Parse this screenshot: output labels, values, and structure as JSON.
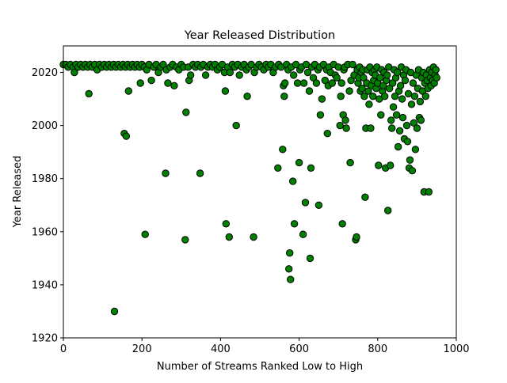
{
  "chart_data": {
    "type": "scatter",
    "title": "Year Released Distribution",
    "xlabel": "Number of Streams Ranked Low to High",
    "ylabel": "Year Released",
    "xlim": [
      0,
      1000
    ],
    "ylim": [
      1920,
      2030
    ],
    "xticks": [
      "0",
      "200",
      "400",
      "600",
      "800",
      "1000"
    ],
    "yticks": [
      "1920",
      "1940",
      "1960",
      "1980",
      "2000",
      "2020"
    ],
    "grid": false,
    "marker_color": "#008000",
    "marker_edge_color": "#000000",
    "points": [
      [
        0,
        2023
      ],
      [
        6,
        2023
      ],
      [
        12,
        2022
      ],
      [
        18,
        2023
      ],
      [
        25,
        2022
      ],
      [
        28,
        2020
      ],
      [
        32,
        2023
      ],
      [
        38,
        2022
      ],
      [
        44,
        2023
      ],
      [
        50,
        2022
      ],
      [
        56,
        2023
      ],
      [
        62,
        2022
      ],
      [
        65,
        2012
      ],
      [
        68,
        2023
      ],
      [
        74,
        2022
      ],
      [
        80,
        2023
      ],
      [
        86,
        2021
      ],
      [
        92,
        2023
      ],
      [
        98,
        2022
      ],
      [
        104,
        2023
      ],
      [
        110,
        2022
      ],
      [
        116,
        2023
      ],
      [
        122,
        2022
      ],
      [
        128,
        2023
      ],
      [
        130,
        1930
      ],
      [
        134,
        2022
      ],
      [
        140,
        2023
      ],
      [
        146,
        2022
      ],
      [
        152,
        2023
      ],
      [
        155,
        1997
      ],
      [
        158,
        2022
      ],
      [
        160,
        1996
      ],
      [
        164,
        2023
      ],
      [
        166,
        2013
      ],
      [
        170,
        2022
      ],
      [
        176,
        2023
      ],
      [
        182,
        2022
      ],
      [
        188,
        2023
      ],
      [
        194,
        2022
      ],
      [
        196,
        2016
      ],
      [
        200,
        2023
      ],
      [
        206,
        2022
      ],
      [
        208,
        1959
      ],
      [
        212,
        2021
      ],
      [
        218,
        2023
      ],
      [
        224,
        2017
      ],
      [
        230,
        2022
      ],
      [
        236,
        2023
      ],
      [
        242,
        2020
      ],
      [
        248,
        2022
      ],
      [
        254,
        2023
      ],
      [
        260,
        1982
      ],
      [
        262,
        2021
      ],
      [
        266,
        2016
      ],
      [
        272,
        2022
      ],
      [
        278,
        2023
      ],
      [
        282,
        2015
      ],
      [
        288,
        2022
      ],
      [
        294,
        2021
      ],
      [
        300,
        2023
      ],
      [
        306,
        2022
      ],
      [
        310,
        1957
      ],
      [
        312,
        2005
      ],
      [
        318,
        2022
      ],
      [
        320,
        2017
      ],
      [
        324,
        2019
      ],
      [
        330,
        2023
      ],
      [
        336,
        2022
      ],
      [
        342,
        2023
      ],
      [
        348,
        1982
      ],
      [
        350,
        2022
      ],
      [
        356,
        2023
      ],
      [
        362,
        2019
      ],
      [
        368,
        2022
      ],
      [
        374,
        2023
      ],
      [
        380,
        2022
      ],
      [
        386,
        2023
      ],
      [
        392,
        2021
      ],
      [
        398,
        2022
      ],
      [
        404,
        2023
      ],
      [
        410,
        2020
      ],
      [
        412,
        2013
      ],
      [
        414,
        1963
      ],
      [
        418,
        2022
      ],
      [
        422,
        1958
      ],
      [
        424,
        2020
      ],
      [
        430,
        2023
      ],
      [
        436,
        2022
      ],
      [
        440,
        2000
      ],
      [
        444,
        2023
      ],
      [
        448,
        2019
      ],
      [
        454,
        2022
      ],
      [
        460,
        2023
      ],
      [
        466,
        2021
      ],
      [
        468,
        2011
      ],
      [
        472,
        2022
      ],
      [
        478,
        2023
      ],
      [
        484,
        1958
      ],
      [
        486,
        2020
      ],
      [
        492,
        2022
      ],
      [
        498,
        2023
      ],
      [
        504,
        2022
      ],
      [
        510,
        2021
      ],
      [
        516,
        2023
      ],
      [
        522,
        2022
      ],
      [
        528,
        2023
      ],
      [
        534,
        2020
      ],
      [
        540,
        2022
      ],
      [
        546,
        1984
      ],
      [
        548,
        2023
      ],
      [
        554,
        2022
      ],
      [
        558,
        1991
      ],
      [
        560,
        2015
      ],
      [
        562,
        2011
      ],
      [
        564,
        2016
      ],
      [
        568,
        2023
      ],
      [
        572,
        2021
      ],
      [
        574,
        1946
      ],
      [
        576,
        1952
      ],
      [
        578,
        1942
      ],
      [
        580,
        2022
      ],
      [
        584,
        1979
      ],
      [
        586,
        2019
      ],
      [
        588,
        1963
      ],
      [
        592,
        2023
      ],
      [
        596,
        2016
      ],
      [
        600,
        1986
      ],
      [
        602,
        2021
      ],
      [
        606,
        2022
      ],
      [
        610,
        1959
      ],
      [
        612,
        2016
      ],
      [
        616,
        1971
      ],
      [
        618,
        2023
      ],
      [
        622,
        2020
      ],
      [
        626,
        2013
      ],
      [
        628,
        1950
      ],
      [
        630,
        1984
      ],
      [
        632,
        2022
      ],
      [
        636,
        2018
      ],
      [
        640,
        2023
      ],
      [
        644,
        2016
      ],
      [
        648,
        2021
      ],
      [
        650,
        1970
      ],
      [
        652,
        2022
      ],
      [
        654,
        2004
      ],
      [
        658,
        2010
      ],
      [
        662,
        2023
      ],
      [
        666,
        2017
      ],
      [
        670,
        2021
      ],
      [
        672,
        1997
      ],
      [
        674,
        2015
      ],
      [
        676,
        2022
      ],
      [
        680,
        2020
      ],
      [
        684,
        2016
      ],
      [
        688,
        2023
      ],
      [
        692,
        2019
      ],
      [
        696,
        2018
      ],
      [
        700,
        2022
      ],
      [
        704,
        2000
      ],
      [
        706,
        2011
      ],
      [
        708,
        2016
      ],
      [
        710,
        1963
      ],
      [
        712,
        2004
      ],
      [
        714,
        2021
      ],
      [
        716,
        2022
      ],
      [
        718,
        2002
      ],
      [
        720,
        1999
      ],
      [
        724,
        2023
      ],
      [
        728,
        2013
      ],
      [
        730,
        1986
      ],
      [
        732,
        2017
      ],
      [
        736,
        2023
      ],
      [
        740,
        2019
      ],
      [
        744,
        1957
      ],
      [
        746,
        1958
      ],
      [
        748,
        2021
      ],
      [
        750,
        2016
      ],
      [
        752,
        2018
      ],
      [
        754,
        2022
      ],
      [
        756,
        2013
      ],
      [
        758,
        2020
      ],
      [
        760,
        2014
      ],
      [
        762,
        2021
      ],
      [
        764,
        2018
      ],
      [
        766,
        2011
      ],
      [
        768,
        1973
      ],
      [
        770,
        1999
      ],
      [
        772,
        2016
      ],
      [
        774,
        2021
      ],
      [
        776,
        2013
      ],
      [
        778,
        2008
      ],
      [
        780,
        2022
      ],
      [
        782,
        1999
      ],
      [
        784,
        2015
      ],
      [
        786,
        2020
      ],
      [
        788,
        2011
      ],
      [
        790,
        2017
      ],
      [
        792,
        2021
      ],
      [
        794,
        2019
      ],
      [
        796,
        2014
      ],
      [
        798,
        2022
      ],
      [
        800,
        2016
      ],
      [
        802,
        1985
      ],
      [
        804,
        2010
      ],
      [
        806,
        2018
      ],
      [
        808,
        2004
      ],
      [
        810,
        2021
      ],
      [
        812,
        2013
      ],
      [
        814,
        2015
      ],
      [
        816,
        2020
      ],
      [
        818,
        2011
      ],
      [
        820,
        1984
      ],
      [
        822,
        2017
      ],
      [
        824,
        2019
      ],
      [
        826,
        1968
      ],
      [
        828,
        2022
      ],
      [
        830,
        2014
      ],
      [
        832,
        1985
      ],
      [
        834,
        2002
      ],
      [
        836,
        1999
      ],
      [
        838,
        2016
      ],
      [
        840,
        2007
      ],
      [
        842,
        2021
      ],
      [
        844,
        2011
      ],
      [
        846,
        2018
      ],
      [
        848,
        2004
      ],
      [
        850,
        2020
      ],
      [
        852,
        1992
      ],
      [
        854,
        2013
      ],
      [
        856,
        1998
      ],
      [
        858,
        2015
      ],
      [
        860,
        2022
      ],
      [
        862,
        2010
      ],
      [
        864,
        2003
      ],
      [
        866,
        2019
      ],
      [
        868,
        1995
      ],
      [
        870,
        2017
      ],
      [
        872,
        2021
      ],
      [
        874,
        2000
      ],
      [
        876,
        1994
      ],
      [
        878,
        2012
      ],
      [
        880,
        1984
      ],
      [
        882,
        1987
      ],
      [
        884,
        2020
      ],
      [
        886,
        2008
      ],
      [
        888,
        1983
      ],
      [
        890,
        2016
      ],
      [
        892,
        2001
      ],
      [
        894,
        2011
      ],
      [
        896,
        1991
      ],
      [
        898,
        2019
      ],
      [
        900,
        1999
      ],
      [
        902,
        2014
      ],
      [
        904,
        2021
      ],
      [
        906,
        2003
      ],
      [
        908,
        2009
      ],
      [
        910,
        2002
      ],
      [
        912,
        2018
      ],
      [
        914,
        2013
      ],
      [
        916,
        2020
      ],
      [
        918,
        1975
      ],
      [
        920,
        2016
      ],
      [
        922,
        2011
      ],
      [
        924,
        2019
      ],
      [
        926,
        2017
      ],
      [
        928,
        2014
      ],
      [
        930,
        1975
      ],
      [
        932,
        2021
      ],
      [
        934,
        2018
      ],
      [
        936,
        2015
      ],
      [
        938,
        2020
      ],
      [
        940,
        2017
      ],
      [
        942,
        2022
      ],
      [
        944,
        2016
      ],
      [
        946,
        2019
      ],
      [
        948,
        2021
      ],
      [
        950,
        2018
      ]
    ]
  }
}
